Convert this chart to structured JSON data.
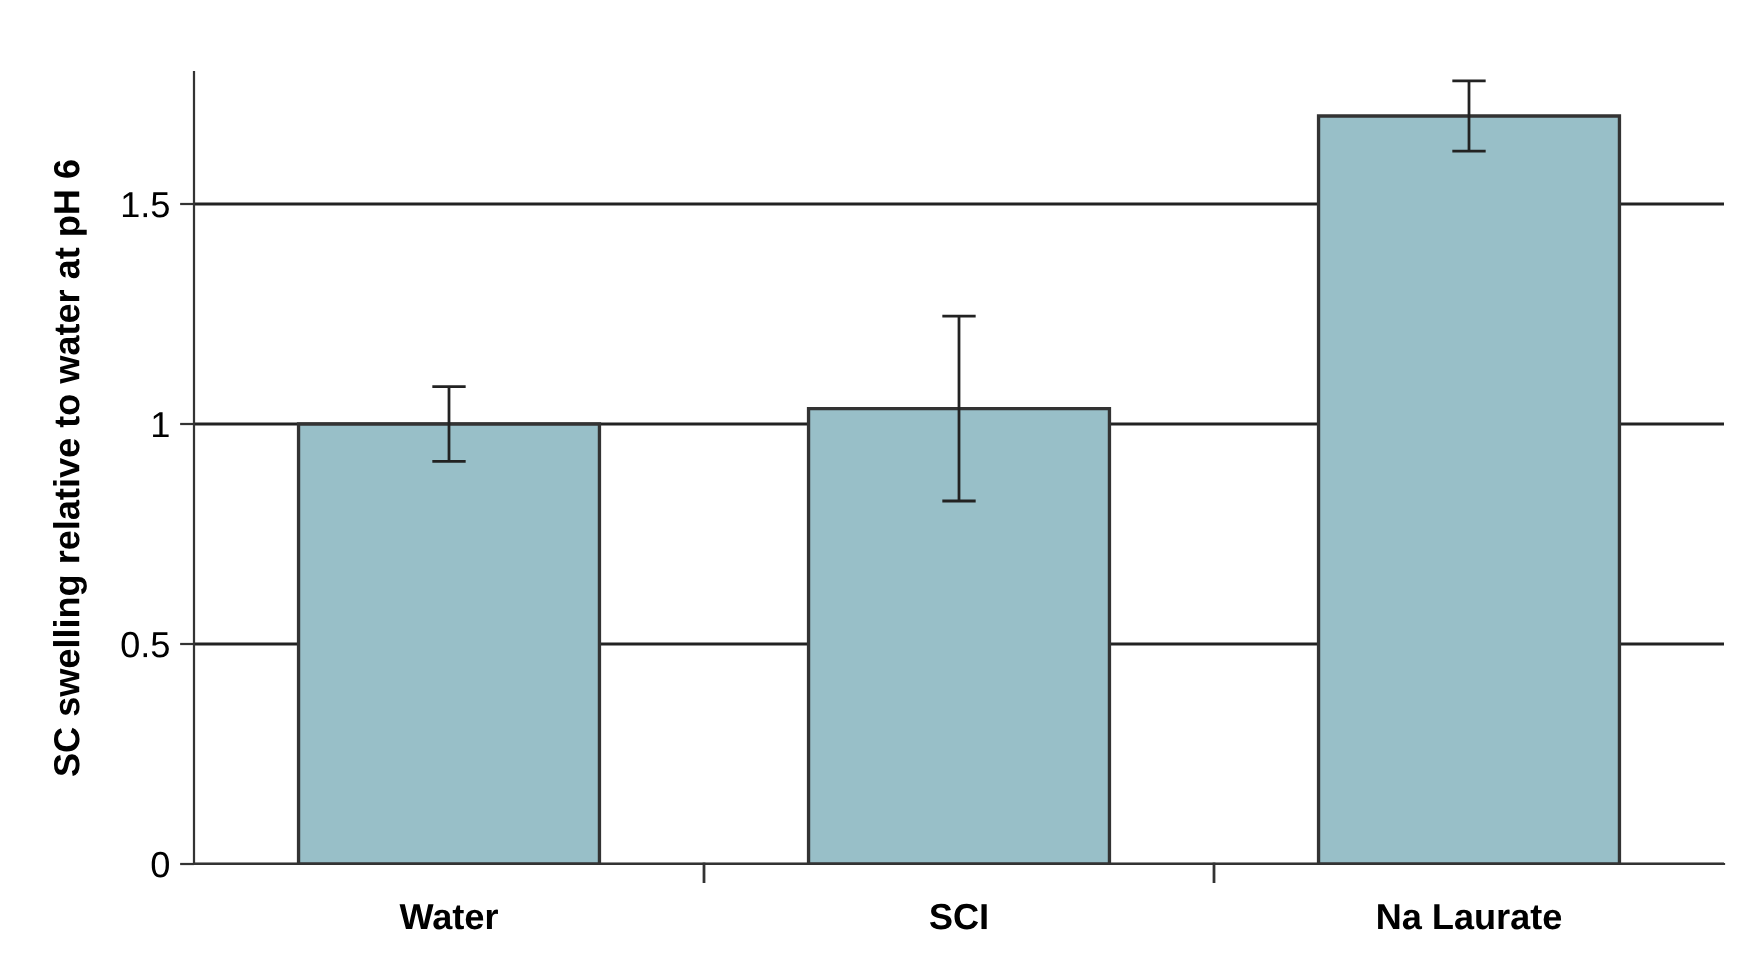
{
  "chart_data": {
    "type": "bar",
    "ylabel": "SC swelling relative to water at pH 6",
    "categories": [
      "Water",
      "SCI",
      "Na Laurate"
    ],
    "values": [
      1.0,
      1.035,
      1.7
    ],
    "errors": [
      0.085,
      0.21,
      0.08
    ],
    "color": "#98bfc8",
    "ylim": [
      0,
      1.8
    ],
    "yticks": [
      0,
      0.5,
      1,
      1.5
    ],
    "grid": "y"
  }
}
